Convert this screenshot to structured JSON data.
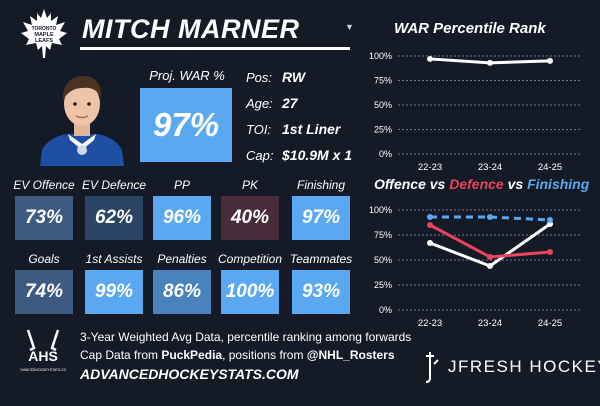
{
  "colors": {
    "background": "#141a26",
    "accent_blue": "#5aa9f0",
    "mid_blue": "#3a82c7",
    "slate": "#3d5a80",
    "dark_slate": "#2d4564",
    "maroon": "#4a2b3a",
    "red": "#e8455a",
    "dashed_blue": "#5aa9f0"
  },
  "header": {
    "team_logo_icon": "maple-leafs-logo",
    "logo_text": "TORONTO MAPLE LEAFS",
    "player_name": "MITCH MARNER",
    "dropdown_icon": "caret-down-icon"
  },
  "proj_war": {
    "label": "Proj. WAR %",
    "value": "97%"
  },
  "bio": {
    "pos_label": "Pos:",
    "pos_value": "RW",
    "age_label": "Age:",
    "age_value": "27",
    "toi_label": "TOI:",
    "toi_value": "1st Liner",
    "cap_label": "Cap:",
    "cap_value": "$10.9M x 1"
  },
  "stats_row1": [
    {
      "label": "EV Offence",
      "value": "73%",
      "color": "#3d5a80"
    },
    {
      "label": "EV Defence",
      "value": "62%",
      "color": "#2d4564"
    },
    {
      "label": "PP",
      "value": "96%",
      "color": "#5aa9f0"
    },
    {
      "label": "PK",
      "value": "40%",
      "color": "#4a2b3a"
    },
    {
      "label": "Finishing",
      "value": "97%",
      "color": "#5aa9f0"
    }
  ],
  "stats_row2": [
    {
      "label": "Goals",
      "value": "74%",
      "color": "#3d5a80"
    },
    {
      "label": "1st Assists",
      "value": "99%",
      "color": "#5aa9f0"
    },
    {
      "label": "Penalties",
      "value": "86%",
      "color": "#4a82bd"
    },
    {
      "label": "Competition",
      "value": "100%",
      "color": "#5aa9f0"
    },
    {
      "label": "Teammates",
      "value": "93%",
      "color": "#5aa9f0"
    }
  ],
  "footer": {
    "ahs_logo_text": "AHS",
    "ahs_logo_subtext": "ADVANCEDHOCKEYSTATS.COM",
    "line1": "3-Year Weighted Avg Data, percentile ranking among forwards",
    "line2_pre": "Cap Data from ",
    "line2_src1": "PuckPedia",
    "line2_mid": ", positions from ",
    "line2_src2": "@NHL_Rosters",
    "site_url": "ADVANCEDHOCKEYSTATS.COM",
    "brand": "JFRESH HOCKEY"
  },
  "chart_data": [
    {
      "type": "line",
      "title": "WAR Percentile Rank",
      "categories": [
        "22-23",
        "23-24",
        "24-25"
      ],
      "y_ticks": [
        "100%",
        "75%",
        "50%",
        "25%",
        "0%"
      ],
      "ylim": [
        0,
        100
      ],
      "series": [
        {
          "values": [
            97,
            93,
            95
          ],
          "color": "#ffffff",
          "style": "solid"
        }
      ]
    },
    {
      "type": "line",
      "title_parts": [
        {
          "text": "Offence",
          "color": "#ffffff"
        },
        {
          "text": " vs ",
          "color": "#ffffff"
        },
        {
          "text": "Defence",
          "color": "#e8455a"
        },
        {
          "text": " vs ",
          "color": "#ffffff"
        },
        {
          "text": "Finishing",
          "color": "#5aa9f0"
        }
      ],
      "categories": [
        "22-23",
        "23-24",
        "24-25"
      ],
      "y_ticks": [
        "100%",
        "75%",
        "50%",
        "25%",
        "0%"
      ],
      "ylim": [
        0,
        100
      ],
      "series": [
        {
          "name": "Offence",
          "values": [
            67,
            44,
            86
          ],
          "color": "#ffffff",
          "style": "solid"
        },
        {
          "name": "Defence",
          "values": [
            85,
            53,
            58
          ],
          "color": "#e8455a",
          "style": "solid"
        },
        {
          "name": "Finishing",
          "values": [
            93,
            93,
            90
          ],
          "color": "#5aa9f0",
          "style": "dashed"
        }
      ]
    }
  ]
}
